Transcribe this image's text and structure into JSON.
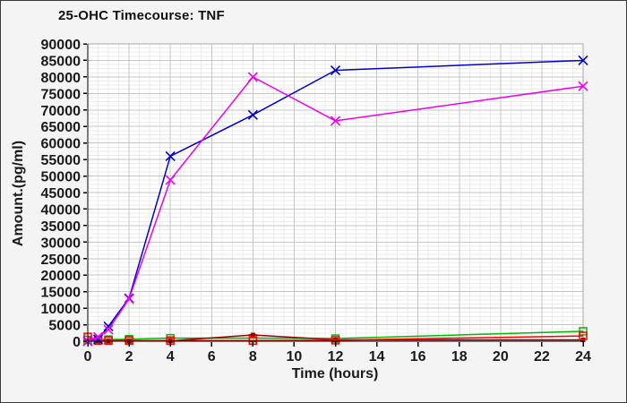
{
  "window": {
    "title": "25-OHC Timecourse: TNF"
  },
  "chart_data": {
    "type": "line",
    "title": "25-OHC Timecourse: TNF",
    "xlabel": "Time (hours)",
    "ylabel": "Amount.(pg/ml)",
    "xlim": [
      0,
      24
    ],
    "ylim": [
      0,
      90000
    ],
    "x_ticks": [
      0,
      2,
      4,
      6,
      8,
      10,
      12,
      14,
      16,
      18,
      20,
      22,
      24
    ],
    "y_ticks": [
      0,
      5000,
      10000,
      15000,
      20000,
      25000,
      30000,
      35000,
      40000,
      45000,
      50000,
      55000,
      60000,
      65000,
      70000,
      75000,
      80000,
      85000,
      90000
    ],
    "x_minor_step": 0.5,
    "y_minor_step": 1250,
    "legend_position": "none",
    "x": [
      0,
      0.5,
      1,
      2,
      4,
      8,
      12,
      24
    ],
    "series": [
      {
        "name": "series-green-squares",
        "color": "#00bb00",
        "marker": "square-open",
        "values": [
          400,
          500,
          500,
          600,
          900,
          900,
          800,
          3000
        ]
      },
      {
        "name": "series-darkred",
        "color": "#990000",
        "marker": "square-filled",
        "values": [
          100,
          100,
          100,
          100,
          100,
          1900,
          400,
          400
        ]
      },
      {
        "name": "series-red-squares",
        "color": "#ff0000",
        "marker": "square-open",
        "values": [
          1300,
          200,
          200,
          200,
          200,
          200,
          300,
          1600
        ]
      },
      {
        "name": "series-blue-x",
        "color": "#0000cc",
        "marker": "x",
        "values": [
          0,
          600,
          4500,
          13000,
          56000,
          68500,
          82000,
          85000
        ]
      },
      {
        "name": "series-magenta-x",
        "color": "#ee00ee",
        "marker": "x",
        "values": [
          0,
          1300,
          3500,
          12800,
          48800,
          80000,
          66700,
          77200
        ]
      }
    ],
    "style": {
      "page_bg": "#f4f4f4",
      "plot_bg": "#ffffff",
      "grid_major": "#c6c6c6",
      "grid_minor": "#ebebeb",
      "frame": "#aaaaaa",
      "axis": "#000000",
      "text": "#1a1a1a"
    }
  }
}
